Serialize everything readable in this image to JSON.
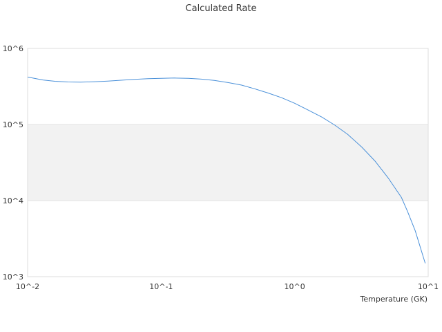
{
  "chart_data": {
    "type": "line",
    "title": "Calculated Rate",
    "xlabel": "Temperature (GK)",
    "ylabel": "",
    "x_scale": "log",
    "y_scale": "log",
    "xlim": [
      0.01,
      10
    ],
    "ylim": [
      1000,
      1000000
    ],
    "x_ticks": [
      "10^-2",
      "10^-1",
      "10^0",
      "10^1"
    ],
    "y_ticks": [
      "10^3",
      "10^4",
      "10^5",
      "10^6"
    ],
    "grid": false,
    "band": {
      "y_from": 10000,
      "y_to": 100000,
      "color": "#f2f2f2"
    },
    "legend": "none",
    "series": [
      {
        "color": "#4a90d9",
        "x": [
          0.01,
          0.013,
          0.016,
          0.02,
          0.025,
          0.032,
          0.04,
          0.05,
          0.063,
          0.08,
          0.1,
          0.126,
          0.16,
          0.2,
          0.25,
          0.32,
          0.4,
          0.5,
          0.63,
          0.8,
          1.0,
          1.26,
          1.6,
          2.0,
          2.5,
          3.2,
          4.0,
          5.0,
          6.3,
          7.0,
          8.0,
          9.5
        ],
        "y": [
          420000,
          385000,
          370000,
          362000,
          360000,
          365000,
          372000,
          382000,
          392000,
          400000,
          405000,
          408000,
          405000,
          395000,
          380000,
          355000,
          330000,
          295000,
          260000,
          225000,
          190000,
          155000,
          125000,
          98000,
          74000,
          50000,
          33000,
          20000,
          11000,
          7200,
          4000,
          1500
        ]
      }
    ]
  }
}
